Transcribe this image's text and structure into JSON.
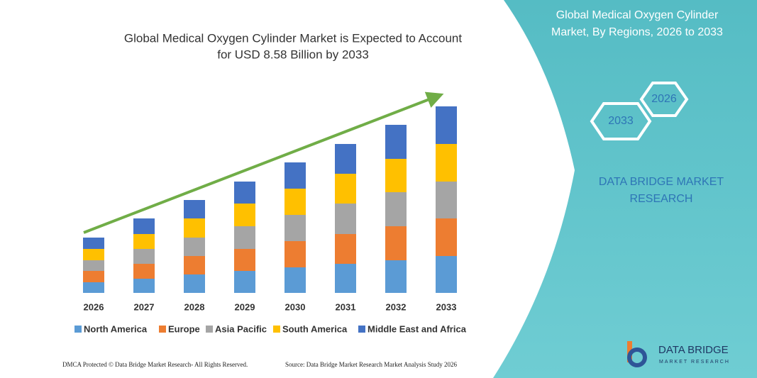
{
  "chart_data": {
    "type": "stacked_bar",
    "title": [
      "Global Medical Oxygen Cylinder Market is Expected to Account",
      "for USD 8.58 Billion by 2033"
    ],
    "categories": [
      "2026",
      "2027",
      "2028",
      "2029",
      "2030",
      "2031",
      "2032",
      "2033"
    ],
    "series": [
      {
        "name": "North America",
        "color": "#5b9bd5",
        "values": [
          15,
          20,
          26,
          31,
          36,
          41,
          46,
          52
        ]
      },
      {
        "name": "Europe",
        "color": "#ed7d31",
        "values": [
          16,
          21,
          26,
          31,
          37,
          42,
          48,
          53
        ]
      },
      {
        "name": "Asia Pacific",
        "color": "#a5a5a5",
        "values": [
          15,
          21,
          26,
          32,
          37,
          43,
          48,
          52
        ]
      },
      {
        "name": "South America",
        "color": "#ffc000",
        "values": [
          16,
          21,
          27,
          32,
          37,
          42,
          47,
          53
        ]
      },
      {
        "name": "Middle East and Africa",
        "color": "#4472c4",
        "values": [
          16,
          22,
          26,
          31,
          37,
          42,
          48,
          53
        ]
      }
    ]
  },
  "panel": {
    "title": [
      "Global Medical Oxygen Cylinder",
      "Market, By Regions, 2026 to 2033"
    ],
    "hexagons": [
      "2026",
      "2033"
    ],
    "brand": [
      "DATA BRIDGE MARKET",
      "RESEARCH"
    ]
  },
  "logo": {
    "name": "DATA BRIDGE",
    "tagline": "MARKET RESEARCH"
  },
  "footer": {
    "left": "DMCA Protected © Data Bridge Market Research- All Rights Reserved.",
    "right": "Source: Data Bridge Market Research  Market Analysis Study 2026"
  }
}
